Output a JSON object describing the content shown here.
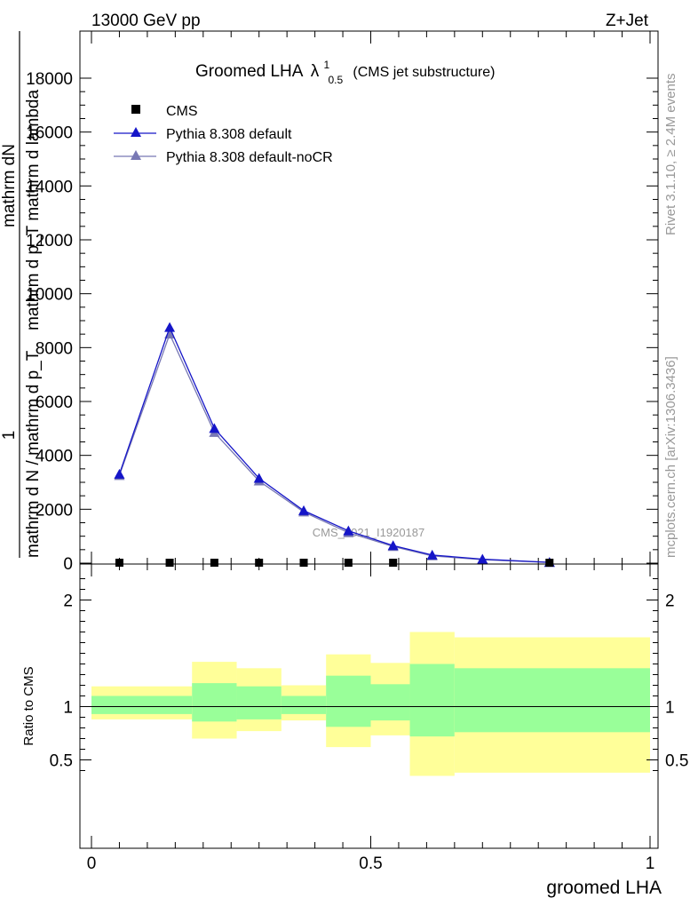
{
  "header": {
    "energy_label": "13000 GeV pp",
    "process_label": "Z+Jet"
  },
  "side_labels": {
    "rivet": "Rivet 3.1.10, ≥ 2.4M events",
    "mcplots": "mcplots.cern.ch [arXiv:1306.3436]"
  },
  "watermark": "CMS_2021_I1920187",
  "chart_data": [
    {
      "type": "line",
      "title_main": "Groomed LHA",
      "title_symbol": "λ",
      "title_sup": "1",
      "title_sub": "0.5",
      "title_note": "(CMS jet substructure)",
      "ylabel_numerator": "1",
      "ylabel_lines": [
        "mathrm d N / mathrm d p_T",
        "mathrm dN",
        "mathrm d p_T mathrm d lambda"
      ],
      "xlim": [
        0,
        1
      ],
      "ylim": [
        0,
        18500
      ],
      "y_ticks": [
        0,
        2000,
        4000,
        6000,
        8000,
        10000,
        12000,
        14000,
        16000,
        18000
      ],
      "legend_position": "top-left",
      "series": [
        {
          "name": "CMS",
          "color": "#000000",
          "marker": "square",
          "x": [
            0.05,
            0.14,
            0.22,
            0.3,
            0.38,
            0.46,
            0.54,
            0.82
          ],
          "y": [
            0,
            0,
            0,
            0,
            0,
            0,
            0,
            0
          ]
        },
        {
          "name": "Pythia 8.308 default",
          "color": "#1515c8",
          "marker": "triangle",
          "x": [
            0.05,
            0.14,
            0.22,
            0.3,
            0.38,
            0.46,
            0.54,
            0.61,
            0.7,
            0.82
          ],
          "y": [
            3300,
            8750,
            5000,
            3150,
            1950,
            1200,
            650,
            300,
            150,
            30
          ]
        },
        {
          "name": "Pythia 8.308 default-noCR",
          "color": "#7878b4",
          "marker": "triangle",
          "x": [
            0.05,
            0.14,
            0.22,
            0.3,
            0.38,
            0.46,
            0.54,
            0.61,
            0.7,
            0.82
          ],
          "y": [
            3250,
            8500,
            4850,
            3050,
            1900,
            1130,
            620,
            270,
            130,
            25
          ]
        }
      ]
    },
    {
      "type": "area",
      "ylabel": "Ratio to CMS",
      "xlabel": "groomed LHA",
      "xlim": [
        0,
        1
      ],
      "ylim": [
        0.35,
        2.25
      ],
      "x_ticks": [
        0,
        0.5,
        1
      ],
      "y_ticks": [
        0.5,
        1,
        2
      ],
      "reference_line": 1,
      "bands": [
        {
          "x0": 0.0,
          "x1": 0.18,
          "yellow": [
            0.88,
            1.19
          ],
          "green": [
            0.93,
            1.1
          ]
        },
        {
          "x0": 0.18,
          "x1": 0.26,
          "yellow": [
            0.7,
            1.42
          ],
          "green": [
            0.86,
            1.22
          ]
        },
        {
          "x0": 0.26,
          "x1": 0.34,
          "yellow": [
            0.77,
            1.36
          ],
          "green": [
            0.88,
            1.19
          ]
        },
        {
          "x0": 0.34,
          "x1": 0.42,
          "yellow": [
            0.87,
            1.2
          ],
          "green": [
            0.93,
            1.1
          ]
        },
        {
          "x0": 0.42,
          "x1": 0.5,
          "yellow": [
            0.62,
            1.49
          ],
          "green": [
            0.81,
            1.29
          ]
        },
        {
          "x0": 0.5,
          "x1": 0.57,
          "yellow": [
            0.73,
            1.41
          ],
          "green": [
            0.87,
            1.21
          ]
        },
        {
          "x0": 0.57,
          "x1": 0.65,
          "yellow": [
            0.35,
            1.7
          ],
          "green": [
            0.72,
            1.4
          ]
        },
        {
          "x0": 0.65,
          "x1": 1.0,
          "yellow": [
            0.38,
            1.65
          ],
          "green": [
            0.76,
            1.36
          ]
        }
      ]
    }
  ],
  "colors": {
    "yellow_band": "#ffff99",
    "green_band": "#99ff99"
  }
}
